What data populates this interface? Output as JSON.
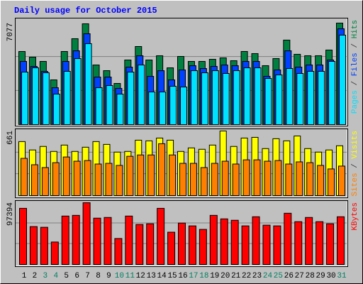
{
  "title": "Daily usage for October 2015",
  "x_axis": {
    "categories": [
      "1",
      "2",
      "3",
      "4",
      "5",
      "6",
      "7",
      "8",
      "9",
      "10",
      "11",
      "12",
      "13",
      "14",
      "15",
      "16",
      "17",
      "18",
      "19",
      "20",
      "21",
      "22",
      "23",
      "24",
      "25",
      "26",
      "27",
      "28",
      "29",
      "30",
      "31"
    ],
    "label_colors": [
      "#000000",
      "#000000",
      "#00805f",
      "#00805f",
      "#000000",
      "#000000",
      "#000000",
      "#000000",
      "#000000",
      "#00805f",
      "#00805f",
      "#000000",
      "#000000",
      "#000000",
      "#000000",
      "#000000",
      "#00805f",
      "#00805f",
      "#000000",
      "#000000",
      "#000000",
      "#000000",
      "#000000",
      "#00805f",
      "#00805f",
      "#000000",
      "#000000",
      "#000000",
      "#000000",
      "#000000",
      "#00805f"
    ]
  },
  "legend_separator": " / ",
  "chart_data": [
    {
      "type": "bar",
      "ylim": [
        0,
        7077
      ],
      "yticks": [
        7077
      ],
      "grid": true,
      "series": [
        {
          "name": "Hits",
          "color": "#008040",
          "values": [
            5097,
            4702,
            4405,
            3118,
            5097,
            5989,
            7028,
            4157,
            3761,
            2870,
            4504,
            5444,
            4504,
            4801,
            3959,
            4751,
            4405,
            4405,
            4553,
            4653,
            4455,
            5099,
            4950,
            4109,
            4604,
            5891,
            4901,
            4802,
            4802,
            5198,
            7077
          ]
        },
        {
          "name": "Files",
          "color": "#0040ff",
          "values": [
            4405,
            4058,
            3712,
            2574,
            4405,
            5147,
            6335,
            3316,
            3316,
            2524,
            4009,
            4801,
            3365,
            3761,
            3118,
            3811,
            4108,
            3910,
            4058,
            4158,
            4109,
            4406,
            4406,
            3366,
            3812,
            5148,
            4010,
            4158,
            4158,
            4505,
            6683
          ]
        },
        {
          "name": "Pages",
          "color": "#00e0ff",
          "values": [
            3662,
            3959,
            3613,
            2128,
            3712,
            4603,
            5642,
            2574,
            2722,
            2128,
            3662,
            4157,
            2277,
            2277,
            2673,
            2623,
            3761,
            3613,
            3761,
            3564,
            3762,
            3960,
            3960,
            3218,
            3465,
            3911,
            3564,
            3713,
            3713,
            4406,
            6237
          ]
        }
      ]
    },
    {
      "type": "bar",
      "ylim": [
        0,
        661
      ],
      "yticks": [
        661
      ],
      "grid": true,
      "series": [
        {
          "name": "Visits",
          "color": "#ffff00",
          "values": [
            553,
            467,
            503,
            452,
            517,
            452,
            495,
            553,
            524,
            445,
            452,
            567,
            560,
            589,
            567,
            452,
            488,
            474,
            517,
            661,
            503,
            589,
            596,
            481,
            582,
            560,
            610,
            481,
            445,
            467,
            510
          ]
        },
        {
          "name": "Sites",
          "color": "#ff8000",
          "values": [
            381,
            316,
            287,
            337,
            395,
            352,
            359,
            323,
            330,
            309,
            402,
            416,
            416,
            531,
            416,
            330,
            330,
            287,
            330,
            352,
            323,
            366,
            366,
            352,
            359,
            323,
            345,
            337,
            309,
            273,
            302
          ]
        }
      ]
    },
    {
      "type": "bar",
      "ylim": [
        0,
        97394
      ],
      "yticks": [
        97394
      ],
      "grid": true,
      "series": [
        {
          "name": "KBytes",
          "color": "#ff0000",
          "values": [
            88536,
            59762,
            58655,
            35414,
            76362,
            77469,
            97394,
            73042,
            74149,
            40948,
            76362,
            63082,
            64189,
            88536,
            50908,
            65295,
            60869,
            55335,
            77469,
            71936,
            69722,
            60869,
            75256,
            61975,
            60869,
            80789,
            67509,
            74149,
            67509,
            64189,
            75256
          ]
        }
      ]
    }
  ]
}
